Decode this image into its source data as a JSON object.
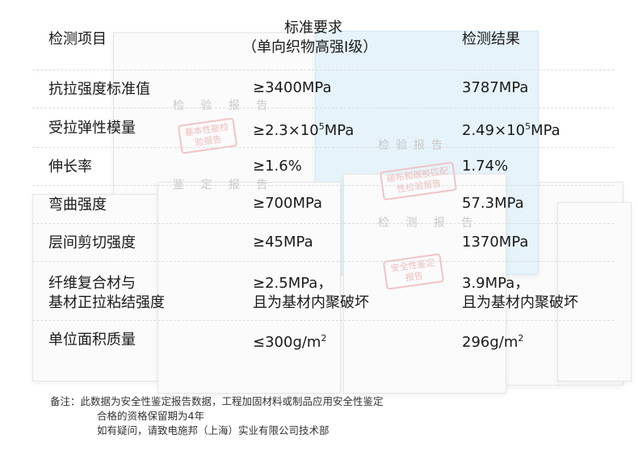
{
  "table": {
    "headers": [
      "检测项目",
      "标准要求",
      "（单向织物高强I级）",
      "检测结果"
    ],
    "rows": [
      {
        "item": "抗拉强度标准值",
        "standard": "≥3400MPa",
        "result": "3787MPa"
      },
      {
        "item": "受拉弹性模量",
        "standard_pre": "≥2.3×10",
        "standard_sup": "5",
        "standard_post": "MPa",
        "result_pre": "2.49×10",
        "result_sup": "5",
        "result_post": "MPa"
      },
      {
        "item": "伸长率",
        "standard": "≥1.6%",
        "result": "1.74%"
      },
      {
        "item": "弯曲强度",
        "standard": "≥700MPa",
        "result": "57.3MPa"
      },
      {
        "item": "层间剪切强度",
        "standard": "≥45MPa",
        "result": "1370MPa"
      },
      {
        "item_line1": "纤维复合材与",
        "item_line2": "基材正拉粘结强度",
        "standard_line1": "≥2.5MPa，",
        "standard_line2": "且为基材内聚破坏",
        "result_line1": "3.9MPa，",
        "result_line2": "且为基材内聚破坏"
      },
      {
        "item": "单位面积质量",
        "standard_pre": "≤300g/m",
        "standard_sup": "2",
        "result_pre": "296g/m",
        "result_sup": "2"
      }
    ]
  },
  "note": {
    "line1": "备注：此数据为安全性鉴定报告数据，工程加固材料或制品应用安全性鉴定",
    "line2": "合格的资格保留期为4年",
    "line3": "如有疑问，请致电施邦（上海）实业有限公司技术部"
  },
  "background_docs": {
    "titles": [
      "检 验 报 告",
      "检验报告",
      "鉴 定 报 告",
      "检 测 报 告"
    ],
    "stamps": [
      "基本性能检验报告",
      "碳布和碳胶匹配性检验报告",
      "安全性鉴定报告"
    ]
  }
}
